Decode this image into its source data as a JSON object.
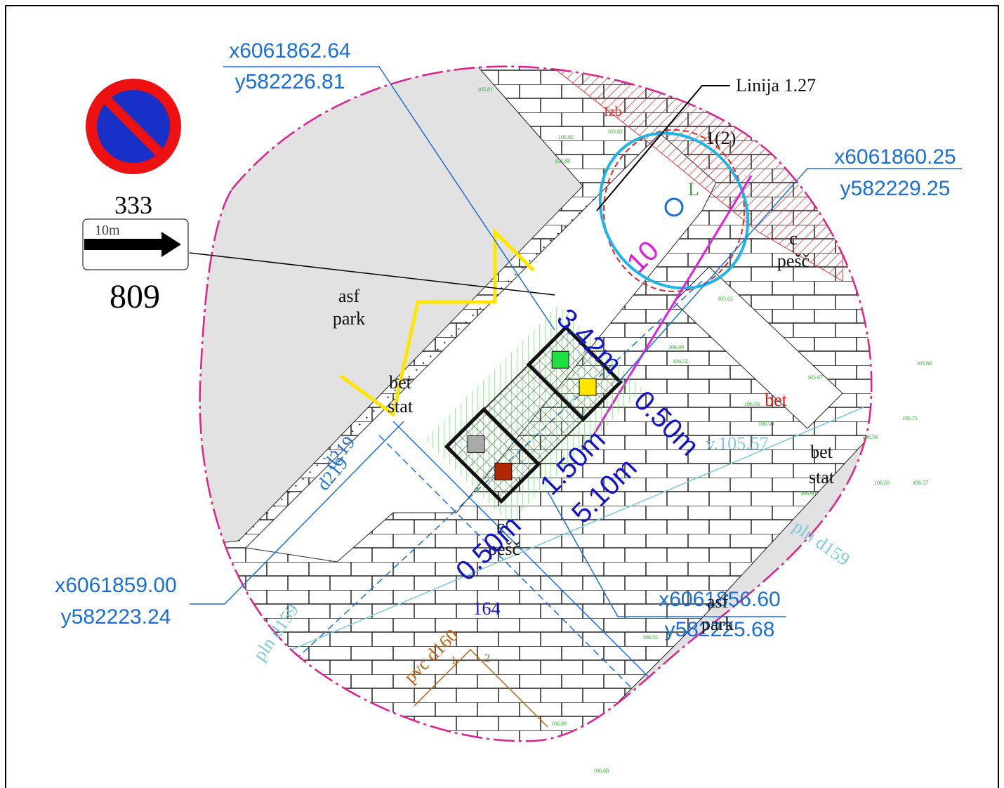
{
  "sign": {
    "number": "333",
    "arrow_label": "10m",
    "plate_number": "809"
  },
  "coordinates": [
    {
      "x": "x6061862.64",
      "y": "y582226.81"
    },
    {
      "x": "x6061860.25",
      "y": "y582229.25"
    },
    {
      "x": "x6061859.00",
      "y": "y582223.24"
    },
    {
      "x": "x6061856.60",
      "y": "y582225.68"
    }
  ],
  "labels": {
    "line": "Linija 1.27",
    "tree": "1(2)",
    "tree_type": "L",
    "asf1": "asf",
    "park1": "park",
    "asf2": "asf",
    "park2": "park",
    "bet1": "bet",
    "stat1": "stat",
    "bet2": "bet",
    "stat2": "stat",
    "bet3": "bet",
    "c1": "c",
    "pesc1": "pešč",
    "c2": "c",
    "pesc2": "pešč",
    "level": "v.105.57",
    "pln1": "pln d159",
    "pln2": "pln d159",
    "d219a": "d219",
    "d219b": "d219",
    "num164": "164",
    "pvc": "pvc d160",
    "n1": "1",
    "n2": "2",
    "izb": "Izb"
  },
  "dimensions": {
    "d10": "10",
    "d342": "3.42m",
    "d050a": "0.50m",
    "d150": "1.50m",
    "d510": "5.10m",
    "d050b": "0.50m"
  },
  "elevations": [
    "105.81",
    "105.82",
    "105.92",
    "105.88",
    "105.65",
    "106.49",
    "106.52",
    "105.67",
    "106.50",
    "106.50",
    "105.60",
    "105.71",
    "106.56",
    "106.50",
    "106.57",
    "106.60",
    "106.55",
    "106.88",
    "106.89"
  ]
}
